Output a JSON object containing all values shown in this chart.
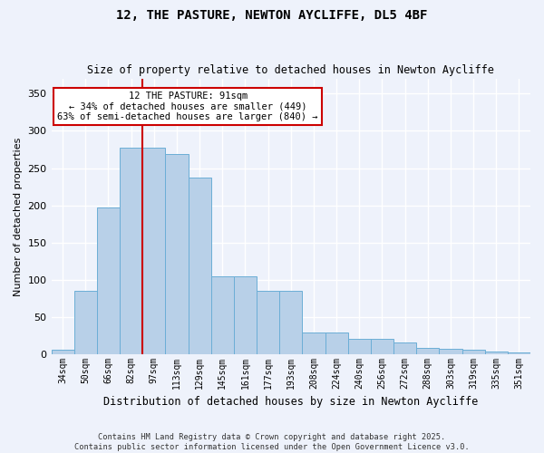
{
  "title1": "12, THE PASTURE, NEWTON AYCLIFFE, DL5 4BF",
  "title2": "Size of property relative to detached houses in Newton Aycliffe",
  "xlabel": "Distribution of detached houses by size in Newton Aycliffe",
  "ylabel": "Number of detached properties",
  "bar_heights": [
    6,
    85,
    197,
    278,
    278,
    269,
    237,
    104,
    104,
    85,
    85,
    29,
    29,
    20,
    20,
    15,
    8,
    7,
    6,
    3,
    2
  ],
  "categories": [
    "34sqm",
    "50sqm",
    "66sqm",
    "82sqm",
    "97sqm",
    "113sqm",
    "129sqm",
    "145sqm",
    "161sqm",
    "177sqm",
    "193sqm",
    "208sqm",
    "224sqm",
    "240sqm",
    "256sqm",
    "272sqm",
    "288sqm",
    "303sqm",
    "319sqm",
    "335sqm",
    "351sqm"
  ],
  "bar_color": "#b8d0e8",
  "bar_edge_color": "#6baed6",
  "vline_color": "#cc0000",
  "annotation_text": "12 THE PASTURE: 91sqm\n← 34% of detached houses are smaller (449)\n63% of semi-detached houses are larger (840) →",
  "annotation_box_color": "#ffffff",
  "annotation_box_edge": "#cc0000",
  "ylim": [
    0,
    370
  ],
  "yticks": [
    0,
    50,
    100,
    150,
    200,
    250,
    300,
    350
  ],
  "bg_color": "#eef2fb",
  "grid_color": "#ffffff",
  "footer": "Contains HM Land Registry data © Crown copyright and database right 2025.\nContains public sector information licensed under the Open Government Licence v3.0."
}
